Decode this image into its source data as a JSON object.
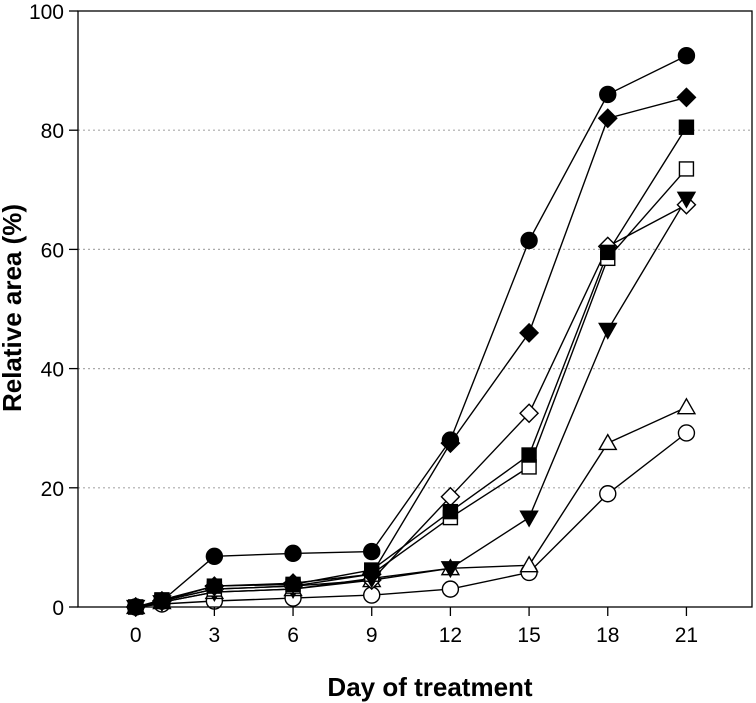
{
  "chart_data": {
    "type": "line",
    "title": "",
    "xlabel": "Day of treatment",
    "ylabel": "Relative area (%)",
    "xlim": [
      -2.2,
      23.5
    ],
    "ylim": [
      0,
      100
    ],
    "xticks": [
      0,
      3,
      6,
      9,
      12,
      15,
      18,
      21
    ],
    "yticks": [
      0,
      20,
      40,
      60,
      80,
      100
    ],
    "grid": "horizontal dotted",
    "series": [
      {
        "name": "filled circle",
        "marker": "circle",
        "filled": true,
        "x": [
          0,
          1,
          3,
          6,
          9,
          12,
          15,
          18,
          21
        ],
        "values": [
          0,
          1,
          8.5,
          9,
          9.3,
          28,
          61.5,
          86,
          92.5
        ]
      },
      {
        "name": "filled diamond",
        "marker": "diamond",
        "filled": true,
        "x": [
          0,
          1,
          3,
          6,
          9,
          12,
          15,
          18,
          21
        ],
        "values": [
          0,
          1,
          3.5,
          4,
          5.5,
          27.5,
          46,
          82,
          85.5
        ]
      },
      {
        "name": "filled square",
        "marker": "square",
        "filled": true,
        "x": [
          0,
          1,
          3,
          6,
          9,
          12,
          15,
          18,
          21
        ],
        "values": [
          0,
          1.2,
          3.5,
          3.8,
          6.2,
          16,
          25.5,
          59.5,
          80.5
        ]
      },
      {
        "name": "open square",
        "marker": "square",
        "filled": false,
        "x": [
          0,
          1,
          3,
          6,
          9,
          12,
          15,
          18,
          21
        ],
        "values": [
          0,
          1,
          3,
          3.5,
          5.5,
          15,
          23.5,
          58.5,
          73.5
        ]
      },
      {
        "name": "filled down triangle",
        "marker": "triangle-down",
        "filled": true,
        "x": [
          0,
          1,
          3,
          6,
          9,
          12,
          15,
          18,
          21
        ],
        "values": [
          0,
          0.8,
          2.5,
          3,
          4.8,
          6.5,
          15,
          46.5,
          68.5
        ]
      },
      {
        "name": "open diamond",
        "marker": "diamond",
        "filled": false,
        "x": [
          0,
          1,
          3,
          6,
          9,
          12,
          15,
          18,
          21
        ],
        "values": [
          0,
          1,
          3,
          3.5,
          4.5,
          18.5,
          32.5,
          60.5,
          67.5
        ]
      },
      {
        "name": "open triangle",
        "marker": "triangle-up",
        "filled": false,
        "x": [
          0,
          1,
          3,
          6,
          9,
          12,
          15,
          18,
          21
        ],
        "values": [
          0,
          0.8,
          2.5,
          3,
          4.5,
          6.5,
          7,
          27.5,
          33.5
        ]
      },
      {
        "name": "open circle",
        "marker": "circle",
        "filled": false,
        "x": [
          0,
          1,
          3,
          6,
          9,
          12,
          15,
          18,
          21
        ],
        "values": [
          0,
          0.5,
          1,
          1.5,
          2,
          3,
          5.8,
          19,
          29.2
        ]
      }
    ]
  }
}
